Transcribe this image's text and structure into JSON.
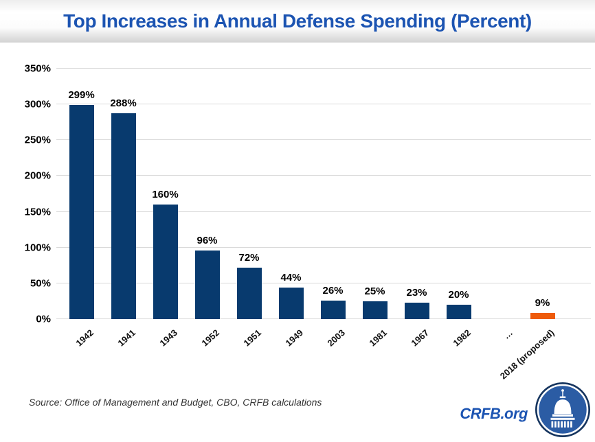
{
  "header": {
    "title": "Top Increases in Annual Defense Spending (Percent)"
  },
  "chart_data": {
    "type": "bar",
    "title": "Top Increases in Annual Defense Spending (Percent)",
    "categories": [
      "1942",
      "1941",
      "1943",
      "1952",
      "1951",
      "1949",
      "2003",
      "1981",
      "1967",
      "1982",
      "…",
      "2018 (proposed)"
    ],
    "values": [
      299,
      288,
      160,
      96,
      72,
      44,
      26,
      25,
      23,
      20,
      null,
      9
    ],
    "value_labels": [
      "299%",
      "288%",
      "160%",
      "96%",
      "72%",
      "44%",
      "26%",
      "25%",
      "23%",
      "20%",
      null,
      "9%"
    ],
    "xlabel": "",
    "ylabel": "",
    "ylim": [
      0,
      350
    ],
    "ytick_step": 50,
    "ytick_suffix": "%",
    "grid": true,
    "legend": null,
    "bar_color": "#083A6E",
    "highlight_index": 11,
    "highlight_color": "#EE5B0B"
  },
  "footer": {
    "source": "Source: Office of Management and Budget, CBO, CRFB calculations",
    "brand_text": "CRFB.org",
    "logo": "capitol-dome-icon"
  },
  "colors": {
    "title_blue": "#1C54B2",
    "bar_navy": "#083A6E",
    "bar_orange": "#EE5B0B",
    "gridline": "#D9D9D9"
  }
}
